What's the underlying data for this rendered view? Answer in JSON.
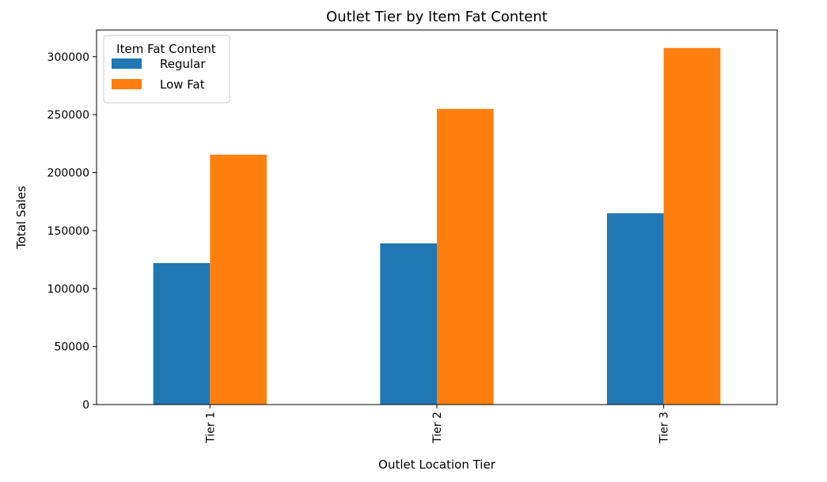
{
  "chart_data": {
    "type": "bar",
    "title": "Outlet Tier by Item Fat Content",
    "xlabel": "Outlet Location Tier",
    "ylabel": "Total Sales",
    "categories": [
      "Tier 1",
      "Tier 2",
      "Tier 3"
    ],
    "series": [
      {
        "name": "Regular",
        "values": [
          122000,
          139000,
          165000
        ],
        "color": "#1f77b4"
      },
      {
        "name": "Low Fat",
        "values": [
          215500,
          255000,
          307500
        ],
        "color": "#ff7f0e"
      }
    ],
    "ylim": [
      0,
      323000
    ],
    "yticks": [
      0,
      50000,
      100000,
      150000,
      200000,
      250000,
      300000
    ],
    "legend": {
      "title": "Item Fat Content",
      "placement": "top-left"
    },
    "grid": false
  }
}
